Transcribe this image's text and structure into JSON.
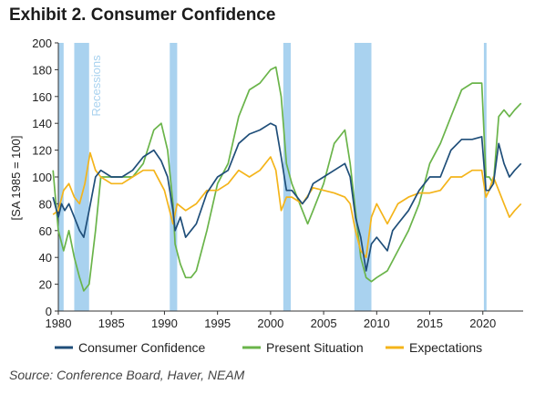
{
  "title": "Exhibit 2. Consumer Confidence",
  "source": "Source: Conference Board, Haver, NEAM",
  "colors": {
    "consumer_confidence": "#1f4e79",
    "present_situation": "#6ab44a",
    "expectations": "#f4b41a",
    "recession": "#a9d2ef"
  },
  "chart_data": {
    "type": "line",
    "ylabel": "[SA 1985 = 100]",
    "xlim": [
      1980,
      2023.8
    ],
    "ylim": [
      0,
      200
    ],
    "x_ticks": [
      "1980",
      "1985",
      "1990",
      "1995",
      "2000",
      "2005",
      "2010",
      "2015",
      "2020"
    ],
    "y_ticks": [
      "0",
      "20",
      "40",
      "60",
      "80",
      "100",
      "120",
      "140",
      "160",
      "180",
      "200"
    ],
    "recession_label": "Recessions",
    "recessions": [
      [
        1980.0,
        1980.5
      ],
      [
        1981.5,
        1982.9
      ],
      [
        1990.5,
        1991.2
      ],
      [
        2001.2,
        2001.9
      ],
      [
        2007.9,
        2009.5
      ],
      [
        2020.1,
        2020.35
      ]
    ],
    "legend": [
      "Consumer Confidence",
      "Present Situation",
      "Expectations"
    ],
    "series": [
      {
        "name": "Consumer Confidence",
        "x": [
          1979.5,
          1980.0,
          1980.3,
          1980.6,
          1981.0,
          1981.5,
          1982.0,
          1982.4,
          1982.9,
          1983.5,
          1984.0,
          1985.0,
          1986.0,
          1987.0,
          1988.0,
          1989.0,
          1989.7,
          1990.3,
          1990.8,
          1991.0,
          1991.5,
          1992.0,
          1992.5,
          1993.0,
          1994.0,
          1995.0,
          1996.0,
          1997.0,
          1998.0,
          1999.0,
          2000.0,
          2000.5,
          2001.0,
          2001.5,
          2002.0,
          2003.0,
          2003.5,
          2004.0,
          2005.0,
          2006.0,
          2007.0,
          2007.5,
          2008.0,
          2008.5,
          2009.0,
          2009.5,
          2010.0,
          2011.0,
          2011.5,
          2012.0,
          2013.0,
          2014.0,
          2015.0,
          2016.0,
          2017.0,
          2018.0,
          2019.0,
          2019.9,
          2020.3,
          2020.6,
          2021.0,
          2021.5,
          2022.0,
          2022.5,
          2023.0,
          2023.6
        ],
        "y": [
          85,
          70,
          80,
          75,
          80,
          70,
          60,
          55,
          75,
          100,
          105,
          100,
          100,
          105,
          115,
          120,
          112,
          100,
          75,
          60,
          70,
          55,
          60,
          65,
          88,
          100,
          105,
          125,
          132,
          135,
          140,
          138,
          115,
          90,
          90,
          80,
          85,
          95,
          100,
          105,
          110,
          100,
          70,
          55,
          30,
          50,
          55,
          45,
          60,
          65,
          75,
          90,
          100,
          100,
          120,
          128,
          128,
          130,
          90,
          90,
          95,
          125,
          110,
          100,
          105,
          110
        ]
      },
      {
        "name": "Present Situation",
        "x": [
          1979.5,
          1980.0,
          1980.5,
          1981.0,
          1981.5,
          1982.0,
          1982.4,
          1982.9,
          1983.5,
          1984.0,
          1985.0,
          1986.0,
          1987.0,
          1988.0,
          1989.0,
          1989.7,
          1990.3,
          1990.8,
          1991.0,
          1991.5,
          1992.0,
          1992.5,
          1993.0,
          1994.0,
          1995.0,
          1996.0,
          1997.0,
          1998.0,
          1999.0,
          2000.0,
          2000.5,
          2001.0,
          2001.5,
          2002.0,
          2003.0,
          2003.5,
          2004.0,
          2005.0,
          2006.0,
          2007.0,
          2007.5,
          2008.0,
          2008.5,
          2009.0,
          2009.5,
          2010.0,
          2011.0,
          2012.0,
          2013.0,
          2014.0,
          2015.0,
          2016.0,
          2017.0,
          2018.0,
          2019.0,
          2019.9,
          2020.3,
          2020.6,
          2021.0,
          2021.5,
          2022.0,
          2022.5,
          2023.0,
          2023.6
        ],
        "y": [
          105,
          60,
          45,
          60,
          40,
          25,
          15,
          20,
          60,
          100,
          100,
          100,
          100,
          110,
          135,
          140,
          120,
          80,
          50,
          35,
          25,
          25,
          30,
          60,
          95,
          110,
          145,
          165,
          170,
          180,
          182,
          160,
          110,
          95,
          75,
          65,
          75,
          95,
          125,
          135,
          110,
          75,
          40,
          25,
          22,
          25,
          30,
          45,
          60,
          80,
          110,
          125,
          145,
          165,
          170,
          170,
          100,
          100,
          95,
          145,
          150,
          145,
          150,
          155
        ]
      },
      {
        "name": "Expectations",
        "x": [
          1979.5,
          1980.0,
          1980.5,
          1981.0,
          1981.5,
          1982.0,
          1982.5,
          1983.0,
          1983.5,
          1984.0,
          1985.0,
          1986.0,
          1987.0,
          1988.0,
          1989.0,
          1990.0,
          1990.8,
          1991.2,
          1992.0,
          1993.0,
          1994.0,
          1995.0,
          1996.0,
          1997.0,
          1998.0,
          1999.0,
          2000.0,
          2000.5,
          2001.0,
          2001.5,
          2002.0,
          2003.0,
          2004.0,
          2005.0,
          2006.0,
          2007.0,
          2007.5,
          2008.0,
          2008.5,
          2009.0,
          2009.5,
          2010.0,
          2011.0,
          2012.0,
          2013.0,
          2014.0,
          2015.0,
          2016.0,
          2017.0,
          2018.0,
          2019.0,
          2019.9,
          2020.3,
          2020.6,
          2021.0,
          2021.5,
          2022.0,
          2022.5,
          2023.0,
          2023.6
        ],
        "y": [
          72,
          75,
          90,
          95,
          85,
          80,
          95,
          118,
          105,
          100,
          95,
          95,
          100,
          105,
          105,
          90,
          65,
          80,
          75,
          80,
          90,
          90,
          95,
          105,
          100,
          105,
          115,
          105,
          75,
          85,
          85,
          80,
          92,
          90,
          88,
          85,
          80,
          60,
          45,
          40,
          70,
          80,
          65,
          80,
          85,
          88,
          88,
          90,
          100,
          100,
          105,
          105,
          85,
          90,
          100,
          90,
          80,
          70,
          75,
          80
        ]
      }
    ]
  }
}
